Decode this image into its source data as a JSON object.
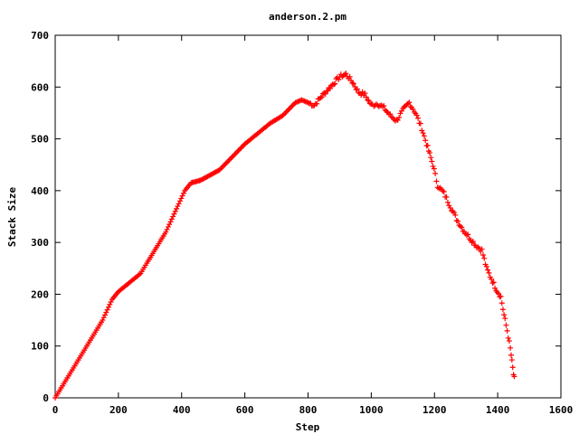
{
  "chart_data": {
    "type": "scatter",
    "title": "anderson.2.pm",
    "xlabel": "Step",
    "ylabel": "Stack Size",
    "xlim": [
      0,
      1600
    ],
    "ylim": [
      0,
      700
    ],
    "xticks": [
      0,
      200,
      400,
      600,
      800,
      1000,
      1200,
      1400,
      1600
    ],
    "yticks": [
      0,
      100,
      200,
      300,
      400,
      500,
      600,
      700
    ],
    "grid": false,
    "legend": "none",
    "marker": "+",
    "color": "#ff0000",
    "outline": [
      [
        0,
        0
      ],
      [
        50,
        50
      ],
      [
        100,
        100
      ],
      [
        150,
        150
      ],
      [
        180,
        190
      ],
      [
        200,
        205
      ],
      [
        230,
        220
      ],
      [
        250,
        230
      ],
      [
        270,
        240
      ],
      [
        290,
        260
      ],
      [
        320,
        290
      ],
      [
        350,
        320
      ],
      [
        380,
        360
      ],
      [
        410,
        400
      ],
      [
        430,
        415
      ],
      [
        460,
        420
      ],
      [
        490,
        430
      ],
      [
        520,
        440
      ],
      [
        560,
        465
      ],
      [
        600,
        490
      ],
      [
        640,
        510
      ],
      [
        680,
        530
      ],
      [
        720,
        545
      ],
      [
        760,
        570
      ],
      [
        780,
        575
      ],
      [
        800,
        570
      ],
      [
        820,
        565
      ],
      [
        840,
        580
      ],
      [
        870,
        600
      ],
      [
        900,
        620
      ],
      [
        920,
        625
      ],
      [
        940,
        610
      ],
      [
        960,
        590
      ],
      [
        980,
        585
      ],
      [
        1000,
        565
      ],
      [
        1020,
        568
      ],
      [
        1040,
        560
      ],
      [
        1060,
        545
      ],
      [
        1080,
        535
      ],
      [
        1100,
        555
      ],
      [
        1120,
        570
      ],
      [
        1140,
        550
      ],
      [
        1160,
        520
      ],
      [
        1175,
        490
      ],
      [
        1185,
        470
      ],
      [
        1195,
        450
      ],
      [
        1210,
        410
      ],
      [
        1230,
        395
      ],
      [
        1250,
        370
      ],
      [
        1270,
        345
      ],
      [
        1290,
        325
      ],
      [
        1310,
        310
      ],
      [
        1330,
        295
      ],
      [
        1350,
        285
      ],
      [
        1365,
        250
      ],
      [
        1380,
        230
      ],
      [
        1395,
        210
      ],
      [
        1410,
        195
      ],
      [
        1420,
        160
      ],
      [
        1430,
        130
      ],
      [
        1440,
        95
      ],
      [
        1445,
        70
      ],
      [
        1450,
        45
      ],
      [
        1455,
        30
      ]
    ]
  }
}
